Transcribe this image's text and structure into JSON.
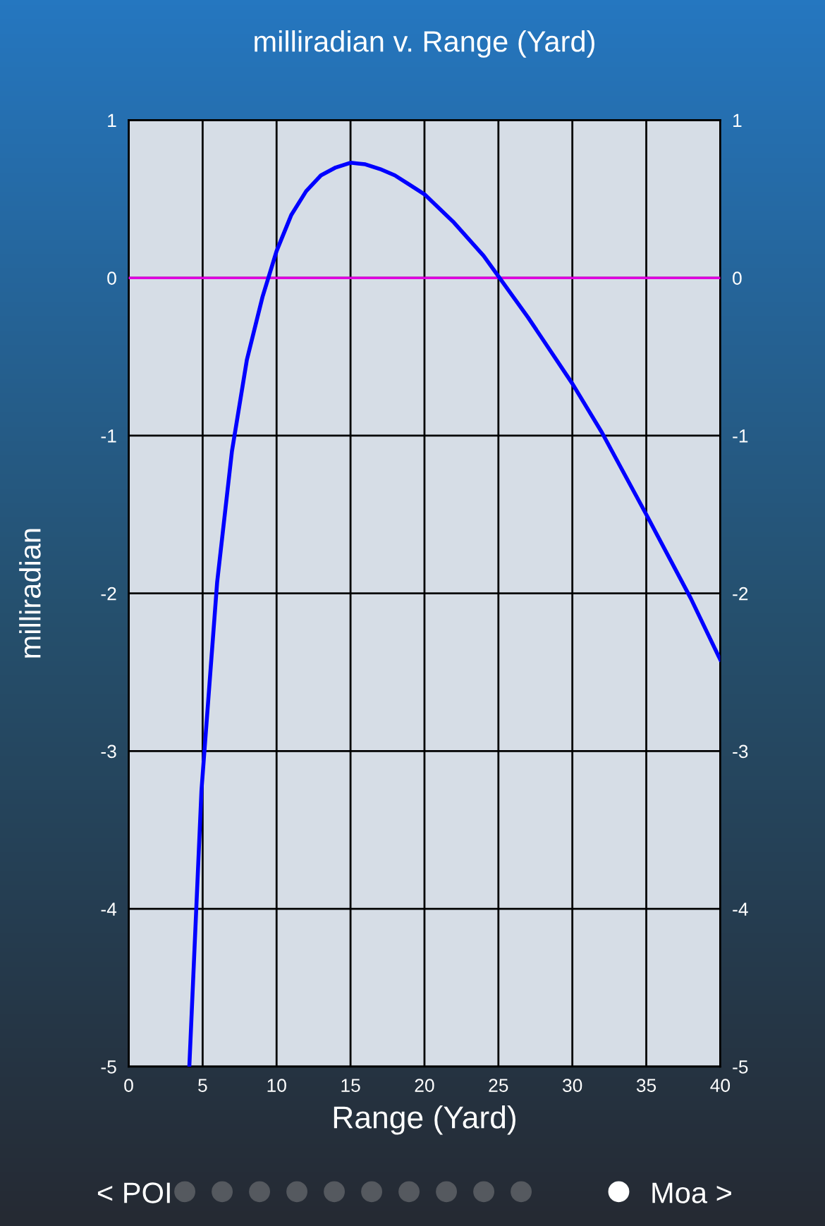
{
  "chart_data": {
    "type": "line",
    "title": "milliradian v. Range (Yard)",
    "xlabel": "Range (Yard)",
    "ylabel": "milliradian",
    "series": [
      {
        "color": "#0000ff",
        "x": [
          4.1,
          4.92,
          5.98,
          6.98,
          7.99,
          9.05,
          10,
          11,
          12,
          13,
          14,
          15,
          16,
          17,
          18,
          19,
          20,
          22,
          24,
          25,
          27,
          30,
          32,
          35,
          38,
          40
        ],
        "values": [
          -5,
          -3.25,
          -1.93,
          -1.1,
          -0.52,
          -0.12,
          0.17,
          0.4,
          0.55,
          0.65,
          0.7,
          0.73,
          0.72,
          0.69,
          0.65,
          0.59,
          0.53,
          0.35,
          0.14,
          0.01,
          -0.25,
          -0.67,
          -0.98,
          -1.5,
          -2.03,
          -2.42
        ]
      }
    ],
    "xlim": [
      0,
      40
    ],
    "xticks": [
      0,
      5,
      10,
      15,
      20,
      25,
      30,
      35,
      40
    ],
    "ylim": [
      -5,
      1
    ],
    "yticks": [
      -5,
      -4,
      -3,
      -2,
      -1,
      0,
      1
    ],
    "y2lim": [
      -5,
      1
    ],
    "y2ticks": [
      -5,
      -4,
      -3,
      -2,
      -1,
      0,
      1
    ],
    "ref_lines": [
      {
        "axis": "y",
        "value": 0,
        "color": "#e000e0"
      }
    ],
    "grid": true,
    "legend": false,
    "marker": "none",
    "line_style": "solid",
    "annotations": [
      "< POI",
      "Moa >"
    ]
  }
}
